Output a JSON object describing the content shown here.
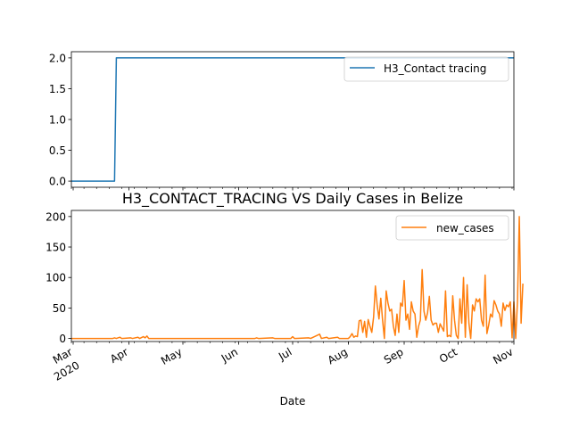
{
  "chart_data": [
    {
      "type": "line",
      "title": "",
      "xlabel": "",
      "ylabel": "",
      "ylim": [
        -0.1,
        2.1
      ],
      "yticks": [
        "0.0",
        "0.5",
        "1.0",
        "1.5",
        "2.0"
      ],
      "ytick_values": [
        0,
        0.5,
        1.0,
        1.5,
        2.0
      ],
      "xlim": [
        "2020-02-29",
        "2020-11-01"
      ],
      "x_tick_labels": [],
      "legend_position": "upper right",
      "grid": false,
      "series": [
        {
          "name": "H3_Contact tracing",
          "color": "#1f77b4",
          "points": [
            [
              "2020-02-29",
              0
            ],
            [
              "2020-03-24",
              0
            ],
            [
              "2020-03-25",
              2
            ],
            [
              "2020-11-01",
              2
            ]
          ]
        }
      ]
    },
    {
      "type": "line",
      "title": "H3_CONTACT_TRACING VS Daily Cases in Belize",
      "xlabel": "Date",
      "ylabel": "",
      "ylim": [
        -5,
        210
      ],
      "yticks": [
        "0",
        "50",
        "100",
        "150",
        "200"
      ],
      "ytick_values": [
        0,
        50,
        100,
        150,
        200
      ],
      "xlim": [
        "2020-02-29",
        "2020-11-01"
      ],
      "x_tick_labels": [
        {
          "date": "2020-03-01",
          "label": "Mar",
          "sublabel": "2020"
        },
        {
          "date": "2020-04-01",
          "label": "Apr"
        },
        {
          "date": "2020-05-01",
          "label": "May"
        },
        {
          "date": "2020-06-01",
          "label": "Jun"
        },
        {
          "date": "2020-07-01",
          "label": "Jul"
        },
        {
          "date": "2020-08-01",
          "label": "Aug"
        },
        {
          "date": "2020-09-01",
          "label": "Sep"
        },
        {
          "date": "2020-10-01",
          "label": "Oct"
        },
        {
          "date": "2020-11-01",
          "label": "Nov"
        }
      ],
      "legend_position": "upper right",
      "grid": false,
      "series": [
        {
          "name": "new_cases",
          "color": "#ff7f0e",
          "points": [
            [
              "2020-02-29",
              0
            ],
            [
              "2020-03-23",
              0
            ],
            [
              "2020-03-24",
              1
            ],
            [
              "2020-03-25",
              0
            ],
            [
              "2020-03-27",
              2
            ],
            [
              "2020-03-28",
              0
            ],
            [
              "2020-04-02",
              1
            ],
            [
              "2020-04-03",
              0
            ],
            [
              "2020-04-06",
              2
            ],
            [
              "2020-04-07",
              0
            ],
            [
              "2020-04-09",
              3
            ],
            [
              "2020-04-10",
              1
            ],
            [
              "2020-04-11",
              4
            ],
            [
              "2020-04-12",
              0
            ],
            [
              "2020-05-01",
              0
            ],
            [
              "2020-06-10",
              0
            ],
            [
              "2020-06-11",
              1
            ],
            [
              "2020-06-12",
              0
            ],
            [
              "2020-06-20",
              1
            ],
            [
              "2020-06-21",
              0
            ],
            [
              "2020-06-30",
              0
            ],
            [
              "2020-07-01",
              3
            ],
            [
              "2020-07-02",
              0
            ],
            [
              "2020-07-10",
              1
            ],
            [
              "2020-07-11",
              0
            ],
            [
              "2020-07-16",
              7
            ],
            [
              "2020-07-17",
              0
            ],
            [
              "2020-07-20",
              2
            ],
            [
              "2020-07-21",
              0
            ],
            [
              "2020-07-26",
              2
            ],
            [
              "2020-07-27",
              0
            ],
            [
              "2020-08-01",
              0
            ],
            [
              "2020-08-02",
              3
            ],
            [
              "2020-08-03",
              8
            ],
            [
              "2020-08-04",
              2
            ],
            [
              "2020-08-05",
              4
            ],
            [
              "2020-08-06",
              3
            ],
            [
              "2020-08-07",
              29
            ],
            [
              "2020-08-08",
              30
            ],
            [
              "2020-08-09",
              10
            ],
            [
              "2020-08-10",
              28
            ],
            [
              "2020-08-11",
              2
            ],
            [
              "2020-08-12",
              31
            ],
            [
              "2020-08-13",
              20
            ],
            [
              "2020-08-14",
              10
            ],
            [
              "2020-08-15",
              35
            ],
            [
              "2020-08-16",
              86
            ],
            [
              "2020-08-17",
              55
            ],
            [
              "2020-08-18",
              32
            ],
            [
              "2020-08-19",
              66
            ],
            [
              "2020-08-20",
              30
            ],
            [
              "2020-08-21",
              0
            ],
            [
              "2020-08-22",
              78
            ],
            [
              "2020-08-23",
              58
            ],
            [
              "2020-08-24",
              45
            ],
            [
              "2020-08-25",
              48
            ],
            [
              "2020-08-26",
              20
            ],
            [
              "2020-08-27",
              5
            ],
            [
              "2020-08-28",
              40
            ],
            [
              "2020-08-29",
              10
            ],
            [
              "2020-08-30",
              58
            ],
            [
              "2020-08-31",
              53
            ],
            [
              "2020-09-01",
              95
            ],
            [
              "2020-09-02",
              30
            ],
            [
              "2020-09-03",
              40
            ],
            [
              "2020-09-04",
              15
            ],
            [
              "2020-09-05",
              60
            ],
            [
              "2020-09-06",
              45
            ],
            [
              "2020-09-07",
              40
            ],
            [
              "2020-09-08",
              2
            ],
            [
              "2020-09-09",
              20
            ],
            [
              "2020-09-10",
              30
            ],
            [
              "2020-09-11",
              113
            ],
            [
              "2020-09-12",
              45
            ],
            [
              "2020-09-13",
              30
            ],
            [
              "2020-09-14",
              42
            ],
            [
              "2020-09-15",
              69
            ],
            [
              "2020-09-16",
              30
            ],
            [
              "2020-09-17",
              22
            ],
            [
              "2020-09-18",
              25
            ],
            [
              "2020-09-19",
              25
            ],
            [
              "2020-09-20",
              10
            ],
            [
              "2020-09-21",
              24
            ],
            [
              "2020-09-22",
              18
            ],
            [
              "2020-09-23",
              12
            ],
            [
              "2020-09-24",
              78
            ],
            [
              "2020-09-25",
              3
            ],
            [
              "2020-09-26",
              5
            ],
            [
              "2020-09-27",
              3
            ],
            [
              "2020-09-28",
              70
            ],
            [
              "2020-09-29",
              30
            ],
            [
              "2020-09-30",
              5
            ],
            [
              "2020-10-01",
              0
            ],
            [
              "2020-10-02",
              65
            ],
            [
              "2020-10-03",
              25
            ],
            [
              "2020-10-04",
              100
            ],
            [
              "2020-10-05",
              2
            ],
            [
              "2020-10-06",
              88
            ],
            [
              "2020-10-07",
              25
            ],
            [
              "2020-10-08",
              0
            ],
            [
              "2020-10-09",
              55
            ],
            [
              "2020-10-10",
              45
            ],
            [
              "2020-10-11",
              65
            ],
            [
              "2020-10-12",
              60
            ],
            [
              "2020-10-13",
              65
            ],
            [
              "2020-10-14",
              30
            ],
            [
              "2020-10-15",
              20
            ],
            [
              "2020-10-16",
              104
            ],
            [
              "2020-10-17",
              8
            ],
            [
              "2020-10-18",
              22
            ],
            [
              "2020-10-19",
              40
            ],
            [
              "2020-10-20",
              35
            ],
            [
              "2020-10-21",
              62
            ],
            [
              "2020-10-22",
              55
            ],
            [
              "2020-10-23",
              45
            ],
            [
              "2020-10-24",
              40
            ],
            [
              "2020-10-25",
              20
            ],
            [
              "2020-10-26",
              58
            ],
            [
              "2020-10-27",
              46
            ],
            [
              "2020-10-28",
              55
            ],
            [
              "2020-10-29",
              52
            ],
            [
              "2020-10-30",
              60
            ],
            [
              "2020-10-31",
              1
            ],
            [
              "2020-11-01",
              60
            ],
            [
              "2020-11-02",
              0
            ],
            [
              "2020-11-03",
              62
            ],
            [
              "2020-11-04",
              200
            ],
            [
              "2020-11-05",
              25
            ],
            [
              "2020-11-06",
              90
            ]
          ]
        }
      ]
    }
  ]
}
